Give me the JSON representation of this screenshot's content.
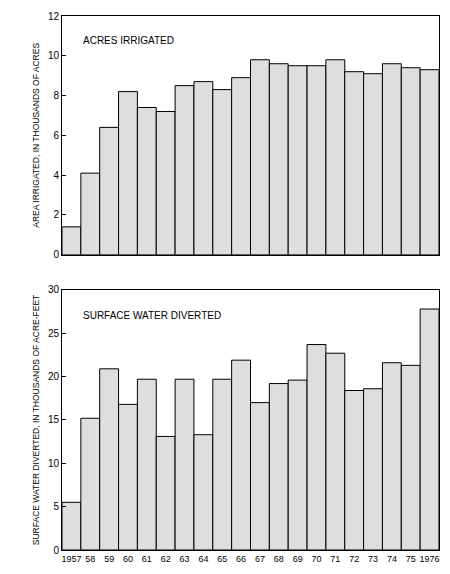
{
  "chart_data": [
    {
      "type": "bar",
      "title": "ACRES IRRIGATED",
      "y_label": "AREA IRRIGATED, IN THOUSANDS OF ACRES",
      "categories": [
        "1957",
        "58",
        "59",
        "60",
        "61",
        "62",
        "63",
        "64",
        "65",
        "66",
        "67",
        "68",
        "69",
        "70",
        "71",
        "72",
        "73",
        "74",
        "75",
        "1976"
      ],
      "values": [
        1.4,
        4.1,
        6.4,
        8.2,
        7.4,
        7.2,
        8.5,
        8.7,
        8.3,
        8.9,
        9.8,
        9.6,
        9.5,
        9.5,
        9.8,
        9.2,
        9.1,
        9.6,
        9.4,
        9.3
      ],
      "color": "#dedede",
      "ylim": [
        0,
        12
      ],
      "yticks": [
        0,
        2,
        4,
        6,
        8,
        10,
        12
      ],
      "grid": false,
      "tick_labels": "y"
    },
    {
      "type": "bar",
      "title": "SURFACE WATER DIVERTED",
      "y_label": "SURFACE WATER DIVERTED, IN THOUSANDS OF ACRE-FEET",
      "categories": [
        "1957",
        "58",
        "59",
        "60",
        "61",
        "62",
        "63",
        "64",
        "65",
        "66",
        "67",
        "68",
        "69",
        "70",
        "71",
        "72",
        "73",
        "74",
        "75",
        "1976"
      ],
      "values": [
        5.5,
        15.2,
        20.9,
        16.8,
        19.7,
        13.1,
        19.7,
        13.3,
        19.7,
        21.9,
        17.0,
        19.2,
        19.6,
        23.7,
        22.7,
        18.4,
        18.6,
        21.6,
        21.3,
        27.8
      ],
      "color": "#dedede",
      "ylim": [
        0,
        30
      ],
      "yticks": [
        0,
        5,
        10,
        15,
        20,
        25,
        30
      ],
      "grid": false
    }
  ]
}
